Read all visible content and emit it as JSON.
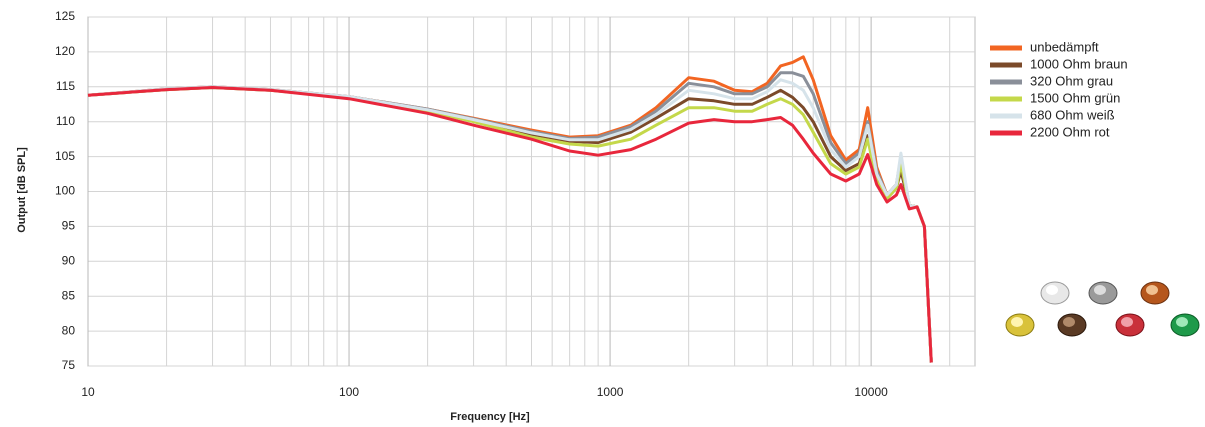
{
  "chart_data": {
    "type": "line",
    "xlabel": "Frequency [Hz]",
    "ylabel": "Output [dB SPL]",
    "log_x": true,
    "grid": true,
    "legend": "right",
    "xlim": [
      10,
      25000
    ],
    "ylim": [
      75,
      125
    ],
    "xticks": [
      10,
      100,
      1000,
      10000
    ],
    "x_minor_ticks": [
      20,
      30,
      40,
      50,
      60,
      70,
      80,
      90,
      200,
      300,
      400,
      500,
      600,
      700,
      800,
      900,
      2000,
      3000,
      4000,
      5000,
      6000,
      7000,
      8000,
      9000,
      20000
    ],
    "yticks": [
      75,
      80,
      85,
      90,
      95,
      100,
      105,
      110,
      115,
      120,
      125
    ],
    "x": [
      10,
      20,
      30,
      50,
      100,
      200,
      300,
      500,
      700,
      900,
      1200,
      1500,
      2000,
      2500,
      3000,
      3500,
      4000,
      4500,
      5000,
      5500,
      6000,
      7000,
      8000,
      9000,
      9700,
      10500,
      11500,
      12500,
      13000,
      14000,
      15000,
      16000,
      17000
    ],
    "series": [
      {
        "name": "unbedämpft",
        "color": "#f26522",
        "values": [
          113.8,
          114.7,
          115,
          114.6,
          113.6,
          111.8,
          110.5,
          108.8,
          107.8,
          108,
          109.5,
          112,
          116.3,
          115.8,
          114.5,
          114.3,
          115.5,
          118,
          118.5,
          119.3,
          116,
          108,
          104.5,
          106,
          112,
          103.5,
          99.5,
          101,
          103.5,
          98,
          97.8,
          95,
          75.5
        ]
      },
      {
        "name": "1000 Ohm braun",
        "color": "#7b4a2a",
        "values": [
          113.8,
          114.6,
          114.9,
          114.5,
          113.5,
          111.6,
          110.2,
          108.2,
          107.2,
          107,
          108.5,
          110.5,
          113.3,
          113,
          112.5,
          112.5,
          113.5,
          114.5,
          113.5,
          112,
          110,
          105,
          103,
          104,
          108,
          102,
          99,
          100.5,
          103,
          98,
          97.8,
          95,
          75.5
        ]
      },
      {
        "name": "320 Ohm grau",
        "color": "#8a8f99",
        "values": [
          113.8,
          114.7,
          115,
          114.6,
          113.6,
          111.8,
          110.4,
          108.6,
          107.6,
          107.8,
          109.3,
          111.5,
          115.5,
          115,
          114,
          114,
          115,
          117,
          117,
          116.5,
          114,
          107,
          104,
          105.5,
          110,
          103,
          99.5,
          101,
          105,
          98,
          97.8,
          95,
          75.5
        ]
      },
      {
        "name": "1500 Ohm grün",
        "color": "#c4d84a",
        "values": [
          113.8,
          114.6,
          114.9,
          114.5,
          113.4,
          111.5,
          110,
          107.8,
          106.8,
          106.5,
          107.5,
          109.5,
          112,
          112,
          111.5,
          111.5,
          112.5,
          113.3,
          112.5,
          111,
          108.5,
          104,
          102.5,
          103.5,
          107.5,
          101.5,
          99,
          100.5,
          104,
          98,
          97.8,
          95,
          75.5
        ]
      },
      {
        "name": "680 Ohm weiß",
        "color": "#d6e3ea",
        "values": [
          113.8,
          114.7,
          115,
          114.6,
          113.6,
          111.7,
          110.3,
          108.4,
          107.4,
          107.4,
          108.9,
          111,
          114.5,
          114,
          113.3,
          113.3,
          114.3,
          116,
          115.5,
          114.5,
          112,
          106,
          103.5,
          105,
          109.5,
          102.5,
          99.5,
          101,
          105.5,
          98,
          97.8,
          95,
          75.5
        ]
      },
      {
        "name": "2200 Ohm rot",
        "color": "#e8273c",
        "values": [
          113.8,
          114.6,
          114.9,
          114.5,
          113.3,
          111.2,
          109.5,
          107.5,
          105.8,
          105.2,
          106,
          107.5,
          109.8,
          110.3,
          110,
          110,
          110.3,
          110.6,
          109.5,
          107.5,
          105.5,
          102.5,
          101.5,
          102.5,
          105.3,
          101,
          98.5,
          99.5,
          101,
          97.5,
          97.8,
          95,
          75.5
        ]
      }
    ]
  }
}
